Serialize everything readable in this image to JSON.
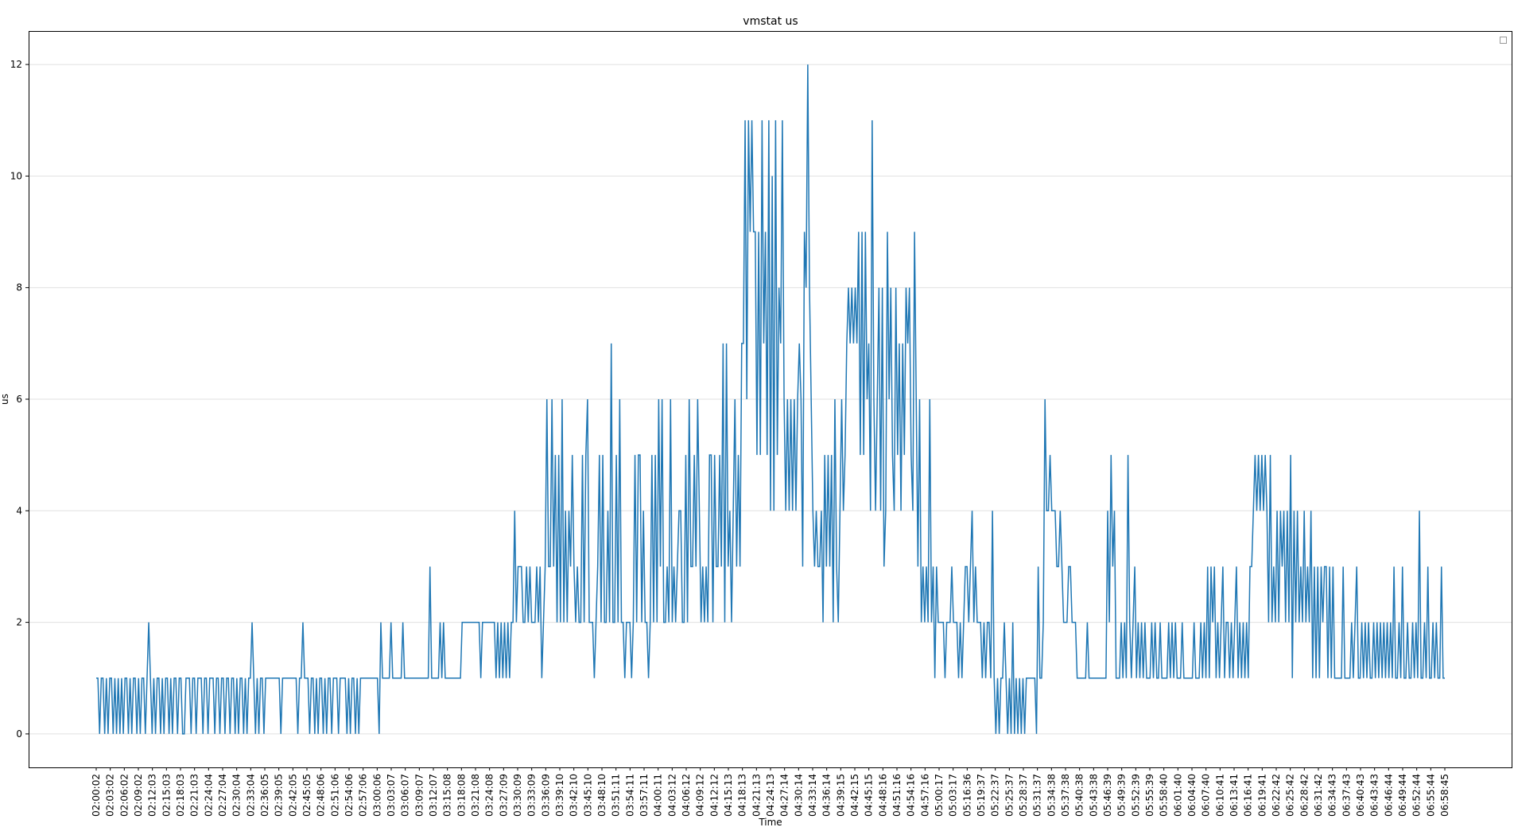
{
  "chart_data": {
    "type": "line",
    "title": "vmstat us",
    "xlabel": "Time",
    "ylabel": "us",
    "ylim": [
      -0.6,
      12.6
    ],
    "yticks": [
      0,
      2,
      4,
      6,
      8,
      10,
      12
    ],
    "grid": "horizontal",
    "legend": "top-right (empty)",
    "colors": {
      "series": "#1f77b4",
      "grid": "#e0e0e0"
    },
    "xticks": [
      "02:00:02",
      "02:03:02",
      "02:06:02",
      "02:09:02",
      "02:12:03",
      "02:15:03",
      "02:18:03",
      "02:21:03",
      "02:24:04",
      "02:27:04",
      "02:30:04",
      "02:33:04",
      "02:36:05",
      "02:39:05",
      "02:42:05",
      "02:45:05",
      "02:48:06",
      "02:51:06",
      "02:54:06",
      "02:57:06",
      "03:00:06",
      "03:03:07",
      "03:06:07",
      "03:09:07",
      "03:12:07",
      "03:15:08",
      "03:18:08",
      "03:21:08",
      "03:24:08",
      "03:27:09",
      "03:30:09",
      "03:33:09",
      "03:36:09",
      "03:39:10",
      "03:42:10",
      "03:45:10",
      "03:48:10",
      "03:51:11",
      "03:54:11",
      "03:57:11",
      "04:00:11",
      "04:03:12",
      "04:06:12",
      "04:09:12",
      "04:12:12",
      "04:15:13",
      "04:18:13",
      "04:21:13",
      "04:24:13",
      "04:27:14",
      "04:30:14",
      "04:33:14",
      "04:36:14",
      "04:39:15",
      "04:42:15",
      "04:45:15",
      "04:48:16",
      "04:51:16",
      "04:54:16",
      "04:57:16",
      "05:00:17",
      "05:03:17",
      "05:16:36",
      "05:19:37",
      "05:22:37",
      "05:25:37",
      "05:28:37",
      "05:31:37",
      "05:34:38",
      "05:37:38",
      "05:40:38",
      "05:43:38",
      "05:46:39",
      "05:49:39",
      "05:52:39",
      "05:55:39",
      "05:58:40",
      "06:01:40",
      "06:04:40",
      "06:07:40",
      "06:10:41",
      "06:13:41",
      "06:16:41",
      "06:19:41",
      "06:22:42",
      "06:25:42",
      "06:28:42",
      "06:31:42",
      "06:34:43",
      "06:37:43",
      "06:40:43",
      "06:43:43",
      "06:46:44",
      "06:49:44",
      "06:52:44",
      "06:55:44",
      "06:58:45"
    ],
    "series": [
      {
        "values": [
          1,
          1,
          0,
          1,
          1,
          0,
          1,
          0,
          1,
          1,
          0,
          1,
          0,
          1,
          0,
          1,
          0,
          1,
          1,
          0,
          1,
          0,
          1,
          1,
          0,
          1,
          0,
          1,
          1,
          0,
          1,
          2,
          1,
          0,
          1,
          0,
          1,
          1,
          0,
          1,
          0,
          1,
          1,
          0,
          1,
          0,
          1,
          1,
          0,
          1,
          1,
          0,
          0,
          1,
          1,
          1,
          0,
          1,
          1,
          0,
          1,
          1,
          1,
          0,
          1,
          1,
          0,
          1,
          1,
          1,
          0,
          1,
          1,
          0,
          1,
          1,
          0,
          1,
          1,
          0,
          1,
          1,
          0,
          1,
          0,
          1,
          1,
          0,
          1,
          0,
          1,
          1,
          2,
          1,
          0,
          1,
          0,
          1,
          1,
          0,
          1,
          1,
          1,
          1,
          1,
          1,
          1,
          1,
          1,
          0,
          1,
          1,
          1,
          1,
          1,
          1,
          1,
          1,
          1,
          0,
          1,
          1,
          2,
          1,
          1,
          1,
          0,
          1,
          1,
          0,
          1,
          0,
          1,
          1,
          0,
          1,
          0,
          1,
          1,
          0,
          1,
          1,
          1,
          0,
          1,
          1,
          1,
          1,
          0,
          1,
          0,
          1,
          1,
          0,
          1,
          0,
          1,
          1,
          1,
          1,
          1,
          1,
          1,
          1,
          1,
          1,
          1,
          0,
          2,
          1,
          1,
          1,
          1,
          1,
          2,
          1,
          1,
          1,
          1,
          1,
          1,
          2,
          1,
          1,
          1,
          1,
          1,
          1,
          1,
          1,
          1,
          1,
          1,
          1,
          1,
          1,
          1,
          3,
          1,
          1,
          1,
          1,
          1,
          2,
          1,
          2,
          1,
          1,
          1,
          1,
          1,
          1,
          1,
          1,
          1,
          1,
          2,
          2,
          2,
          2,
          2,
          2,
          2,
          2,
          2,
          2,
          2,
          1,
          2,
          2,
          2,
          2,
          2,
          2,
          2,
          2,
          1,
          2,
          1,
          2,
          1,
          2,
          1,
          2,
          1,
          2,
          2,
          4,
          2,
          3,
          3,
          3,
          2,
          2,
          3,
          2,
          3,
          2,
          2,
          2,
          3,
          2,
          3,
          1,
          2,
          3,
          6,
          3,
          3,
          6,
          3,
          5,
          2,
          5,
          2,
          6,
          2,
          4,
          2,
          4,
          3,
          5,
          3,
          2,
          3,
          2,
          2,
          5,
          2,
          5,
          6,
          2,
          2,
          2,
          1,
          2,
          3,
          5,
          2,
          5,
          2,
          2,
          4,
          2,
          7,
          2,
          2,
          5,
          2,
          6,
          2,
          2,
          1,
          2,
          2,
          2,
          1,
          2,
          5,
          2,
          5,
          5,
          2,
          4,
          2,
          2,
          1,
          2,
          5,
          2,
          5,
          2,
          6,
          3,
          6,
          2,
          2,
          3,
          2,
          6,
          2,
          3,
          2,
          3,
          4,
          4,
          2,
          2,
          5,
          2,
          6,
          3,
          3,
          5,
          3,
          6,
          4,
          2,
          3,
          2,
          3,
          2,
          5,
          5,
          2,
          5,
          3,
          3,
          5,
          3,
          7,
          2,
          7,
          3,
          4,
          2,
          4,
          6,
          3,
          5,
          3,
          7,
          7,
          11,
          6,
          11,
          9,
          11,
          9,
          9,
          5,
          9,
          5,
          11,
          7,
          9,
          5,
          11,
          4,
          10,
          4,
          11,
          5,
          8,
          7,
          11,
          6,
          4,
          6,
          4,
          6,
          4,
          6,
          4,
          6,
          7,
          6,
          3,
          9,
          8,
          12,
          8,
          6,
          4,
          3,
          4,
          3,
          3,
          4,
          2,
          5,
          3,
          5,
          3,
          5,
          2,
          6,
          3,
          2,
          4,
          6,
          4,
          5,
          7,
          8,
          7,
          8,
          7,
          8,
          7,
          9,
          5,
          9,
          5,
          9,
          6,
          7,
          4,
          11,
          6,
          4,
          6,
          8,
          4,
          8,
          3,
          4,
          9,
          6,
          8,
          5,
          4,
          8,
          5,
          7,
          4,
          7,
          5,
          8,
          7,
          8,
          5,
          4,
          9,
          6,
          3,
          6,
          2,
          3,
          2,
          3,
          2,
          6,
          2,
          3,
          1,
          3,
          2,
          2,
          2,
          2,
          1,
          2,
          2,
          2,
          3,
          2,
          2,
          2,
          1,
          2,
          1,
          2,
          3,
          3,
          2,
          3,
          4,
          2,
          3,
          2,
          2,
          2,
          1,
          2,
          1,
          2,
          2,
          1,
          4,
          1,
          0,
          1,
          0,
          1,
          1,
          2,
          1,
          0,
          1,
          0,
          2,
          0,
          1,
          0,
          1,
          0,
          1,
          0,
          1,
          1,
          1,
          1,
          1,
          1,
          0,
          3,
          1,
          1,
          2,
          6,
          4,
          4,
          5,
          4,
          4,
          4,
          3,
          3,
          4,
          3,
          2,
          2,
          2,
          3,
          3,
          2,
          2,
          2,
          1,
          1,
          1,
          1,
          1,
          1,
          2,
          1,
          1,
          1,
          1,
          1,
          1,
          1,
          1,
          1,
          1,
          1,
          4,
          2,
          5,
          3,
          4,
          1,
          1,
          1,
          2,
          1,
          2,
          1,
          5,
          2,
          1,
          2,
          3,
          1,
          2,
          1,
          2,
          1,
          2,
          1,
          1,
          1,
          2,
          1,
          2,
          1,
          1,
          2,
          1,
          1,
          1,
          1,
          2,
          1,
          2,
          1,
          2,
          1,
          1,
          1,
          2,
          1,
          1,
          1,
          1,
          1,
          1,
          2,
          1,
          1,
          1,
          2,
          1,
          2,
          1,
          3,
          1,
          3,
          2,
          3,
          1,
          2,
          1,
          2,
          3,
          1,
          2,
          2,
          1,
          2,
          1,
          2,
          3,
          1,
          2,
          1,
          2,
          1,
          2,
          1,
          3,
          3,
          4,
          5,
          4,
          5,
          4,
          5,
          4,
          5,
          4,
          2,
          5,
          2,
          3,
          2,
          4,
          2,
          4,
          3,
          4,
          2,
          4,
          2,
          5,
          1,
          4,
          2,
          4,
          2,
          3,
          2,
          4,
          2,
          3,
          2,
          4,
          1,
          3,
          1,
          3,
          1,
          3,
          2,
          3,
          3,
          1,
          3,
          1,
          3,
          1,
          1,
          1,
          1,
          1,
          3,
          1,
          1,
          1,
          1,
          2,
          1,
          2,
          3,
          1,
          1,
          2,
          1,
          2,
          1,
          2,
          1,
          1,
          2,
          1,
          2,
          1,
          2,
          1,
          2,
          1,
          2,
          1,
          2,
          1,
          3,
          1,
          1,
          2,
          1,
          3,
          1,
          1,
          2,
          1,
          1,
          2,
          1,
          2,
          1,
          4,
          1,
          1,
          2,
          1,
          3,
          1,
          1,
          2,
          1,
          2,
          1,
          1,
          3,
          1,
          1
        ]
      }
    ]
  }
}
